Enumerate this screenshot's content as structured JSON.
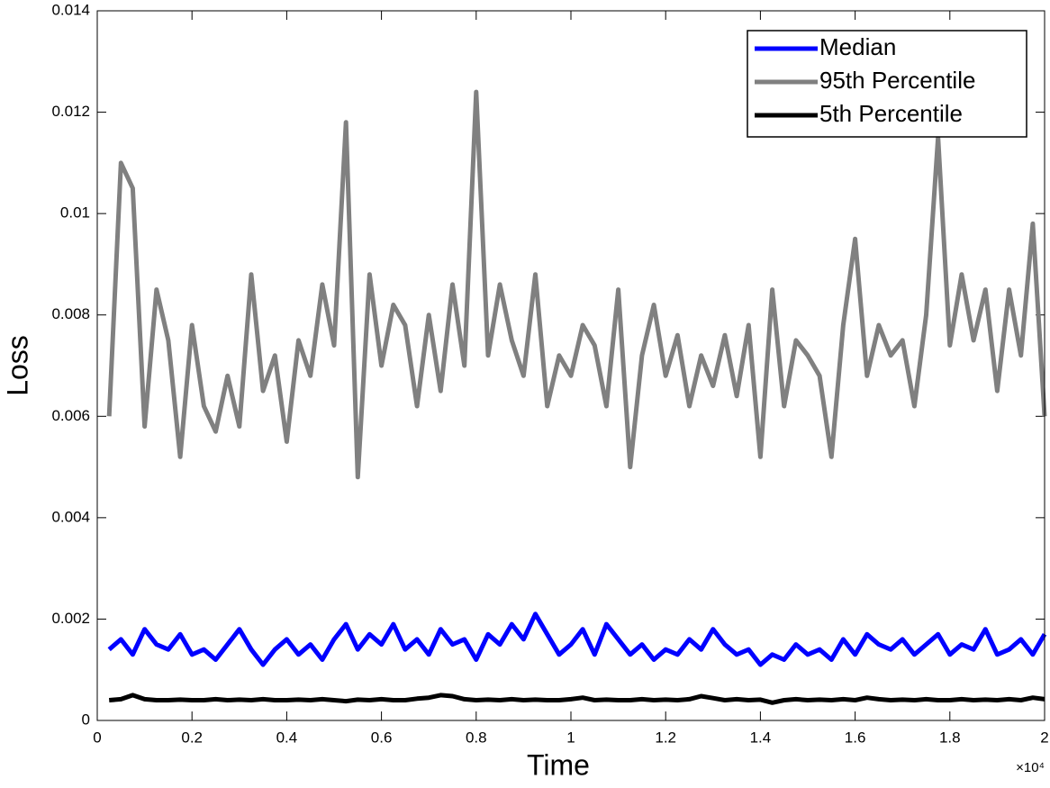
{
  "chart_data": {
    "type": "line",
    "xlabel": "Time",
    "ylabel": "Loss",
    "x_multiplier": "×10⁴",
    "x": [
      250,
      500,
      750,
      1000,
      1250,
      1500,
      1750,
      2000,
      2250,
      2500,
      2750,
      3000,
      3250,
      3500,
      3750,
      4000,
      4250,
      4500,
      4750,
      5000,
      5250,
      5500,
      5750,
      6000,
      6250,
      6500,
      6750,
      7000,
      7250,
      7500,
      7750,
      8000,
      8250,
      8500,
      8750,
      9000,
      9250,
      9500,
      9750,
      10000,
      10250,
      10500,
      10750,
      11000,
      11250,
      11500,
      11750,
      12000,
      12250,
      12500,
      12750,
      13000,
      13250,
      13500,
      13750,
      14000,
      14250,
      14500,
      14750,
      15000,
      15250,
      15500,
      15750,
      16000,
      16250,
      16500,
      16750,
      17000,
      17250,
      17500,
      17750,
      18000,
      18250,
      18500,
      18750,
      19000,
      19250,
      19500,
      19750,
      20000
    ],
    "series": [
      {
        "name": "Median",
        "color": "#0000ff",
        "values": [
          0.0014,
          0.0016,
          0.0013,
          0.0018,
          0.0015,
          0.0014,
          0.0017,
          0.0013,
          0.0014,
          0.0012,
          0.0015,
          0.0018,
          0.0014,
          0.0011,
          0.0014,
          0.0016,
          0.0013,
          0.0015,
          0.0012,
          0.0016,
          0.0019,
          0.0014,
          0.0017,
          0.0015,
          0.0019,
          0.0014,
          0.0016,
          0.0013,
          0.0018,
          0.0015,
          0.0016,
          0.0012,
          0.0017,
          0.0015,
          0.0019,
          0.0016,
          0.0021,
          0.0017,
          0.0013,
          0.0015,
          0.0018,
          0.0013,
          0.0019,
          0.0016,
          0.0013,
          0.0015,
          0.0012,
          0.0014,
          0.0013,
          0.0016,
          0.0014,
          0.0018,
          0.0015,
          0.0013,
          0.0014,
          0.0011,
          0.0013,
          0.0012,
          0.0015,
          0.0013,
          0.0014,
          0.0012,
          0.0016,
          0.0013,
          0.0017,
          0.0015,
          0.0014,
          0.0016,
          0.0013,
          0.0015,
          0.0017,
          0.0013,
          0.0015,
          0.0014,
          0.0018,
          0.0013,
          0.0014,
          0.0016,
          0.0013,
          0.0017
        ]
      },
      {
        "name": "95th Percentile",
        "color": "#808080",
        "values": [
          0.006,
          0.011,
          0.0105,
          0.0058,
          0.0085,
          0.0075,
          0.0052,
          0.0078,
          0.0062,
          0.0057,
          0.0068,
          0.0058,
          0.0088,
          0.0065,
          0.0072,
          0.0055,
          0.0075,
          0.0068,
          0.0086,
          0.0074,
          0.0118,
          0.0048,
          0.0088,
          0.007,
          0.0082,
          0.0078,
          0.0062,
          0.008,
          0.0065,
          0.0086,
          0.007,
          0.0124,
          0.0072,
          0.0086,
          0.0075,
          0.0068,
          0.0088,
          0.0062,
          0.0072,
          0.0068,
          0.0078,
          0.0074,
          0.0062,
          0.0085,
          0.005,
          0.0072,
          0.0082,
          0.0068,
          0.0076,
          0.0062,
          0.0072,
          0.0066,
          0.0076,
          0.0064,
          0.0078,
          0.0052,
          0.0085,
          0.0062,
          0.0075,
          0.0072,
          0.0068,
          0.0052,
          0.0078,
          0.0095,
          0.0068,
          0.0078,
          0.0072,
          0.0075,
          0.0062,
          0.008,
          0.0115,
          0.0074,
          0.0088,
          0.0075,
          0.0085,
          0.0065,
          0.0085,
          0.0072,
          0.0098,
          0.006
        ]
      },
      {
        "name": "5th Percentile",
        "color": "#000000",
        "values": [
          0.0004,
          0.00042,
          0.0005,
          0.00042,
          0.0004,
          0.0004,
          0.00041,
          0.0004,
          0.0004,
          0.00042,
          0.0004,
          0.00041,
          0.0004,
          0.00042,
          0.0004,
          0.0004,
          0.00041,
          0.0004,
          0.00042,
          0.0004,
          0.00038,
          0.00041,
          0.0004,
          0.00042,
          0.0004,
          0.0004,
          0.00043,
          0.00045,
          0.0005,
          0.00048,
          0.00042,
          0.0004,
          0.00041,
          0.0004,
          0.00042,
          0.0004,
          0.00041,
          0.0004,
          0.0004,
          0.00042,
          0.00045,
          0.0004,
          0.00041,
          0.0004,
          0.0004,
          0.00042,
          0.0004,
          0.00041,
          0.0004,
          0.00042,
          0.00048,
          0.00044,
          0.0004,
          0.00042,
          0.0004,
          0.00041,
          0.00035,
          0.0004,
          0.00042,
          0.0004,
          0.00041,
          0.0004,
          0.00042,
          0.0004,
          0.00045,
          0.00042,
          0.0004,
          0.00041,
          0.0004,
          0.00042,
          0.0004,
          0.0004,
          0.00042,
          0.0004,
          0.00041,
          0.0004,
          0.00042,
          0.0004,
          0.00045,
          0.00042
        ]
      }
    ],
    "xlim": [
      0,
      20000
    ],
    "xticks": [
      {
        "value": 0,
        "label": "0"
      },
      {
        "value": 2000,
        "label": "0.2"
      },
      {
        "value": 4000,
        "label": "0.4"
      },
      {
        "value": 6000,
        "label": "0.6"
      },
      {
        "value": 8000,
        "label": "0.8"
      },
      {
        "value": 10000,
        "label": "1"
      },
      {
        "value": 12000,
        "label": "1.2"
      },
      {
        "value": 14000,
        "label": "1.4"
      },
      {
        "value": 16000,
        "label": "1.6"
      },
      {
        "value": 18000,
        "label": "1.8"
      },
      {
        "value": 20000,
        "label": "2"
      }
    ],
    "ylim": [
      0,
      0.014
    ],
    "yticks": [
      0,
      0.002,
      0.004,
      0.006,
      0.008,
      0.01,
      0.012,
      0.014
    ],
    "grid": false,
    "legend": "top-right"
  }
}
